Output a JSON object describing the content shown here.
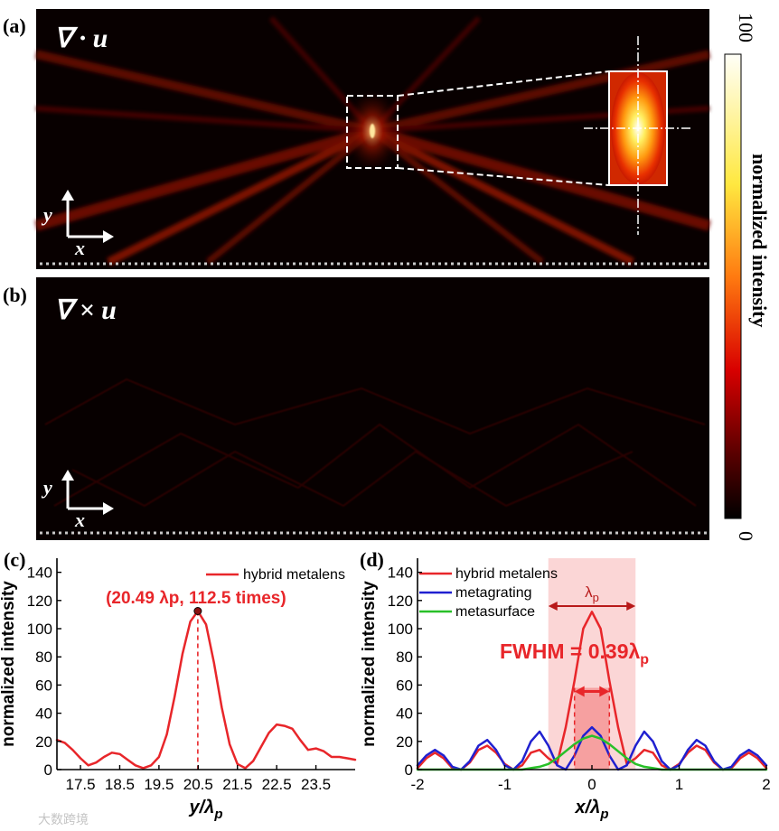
{
  "figure": {
    "panel_a_label": "(a)",
    "panel_b_label": "(b)",
    "panel_c_label": "(c)",
    "panel_d_label": "(d)",
    "panel_a_operator": "∇ · u",
    "panel_b_operator": "∇ × u",
    "axis_y_arrow": "y",
    "axis_x_arrow": "x",
    "colorbar_label": "normalized intensity",
    "colorbar_max": "100",
    "colorbar_min": "0",
    "watermark": "大数跨境"
  },
  "chart_data": [
    {
      "type": "line",
      "panel": "c",
      "xlabel": "y/λp",
      "ylabel": "normalized intensity",
      "xlim": [
        16.9,
        24.5
      ],
      "ylim": [
        0,
        150
      ],
      "xticks": [
        "17.5",
        "18.5",
        "19.5",
        "20.5",
        "21.5",
        "22.5",
        "23.5"
      ],
      "yticks": [
        "0",
        "20",
        "40",
        "60",
        "80",
        "100",
        "120",
        "140"
      ],
      "legend": [
        "hybrid metalens"
      ],
      "legend_position": "top-right",
      "peak": {
        "x": 20.49,
        "y": 112.5
      },
      "annotation": "(20.49 λp, 112.5 times)",
      "series": [
        {
          "name": "hybrid metalens",
          "color": "#e8262a",
          "x": [
            16.9,
            17.1,
            17.3,
            17.5,
            17.7,
            17.9,
            18.1,
            18.3,
            18.5,
            18.7,
            18.9,
            19.1,
            19.3,
            19.5,
            19.7,
            19.9,
            20.1,
            20.3,
            20.49,
            20.7,
            20.9,
            21.1,
            21.3,
            21.5,
            21.7,
            21.9,
            22.1,
            22.3,
            22.5,
            22.7,
            22.9,
            23.1,
            23.3,
            23.5,
            23.7,
            23.9,
            24.1,
            24.3,
            24.5
          ],
          "y": [
            21,
            19,
            14,
            8,
            3,
            5,
            9,
            12,
            11,
            7,
            3,
            1,
            3,
            9,
            25,
            52,
            82,
            105,
            112.5,
            103,
            76,
            44,
            18,
            4,
            1,
            6,
            16,
            26,
            32,
            31,
            29,
            21,
            14,
            15,
            13,
            9,
            9,
            8,
            7
          ]
        }
      ]
    },
    {
      "type": "line",
      "panel": "d",
      "xlabel": "x/λp",
      "ylabel": "normalized intensity",
      "xlim": [
        -2,
        2
      ],
      "ylim": [
        0,
        150
      ],
      "xticks": [
        "-2",
        "-1",
        "0",
        "1",
        "2"
      ],
      "yticks": [
        "0",
        "20",
        "40",
        "60",
        "80",
        "100",
        "120",
        "140"
      ],
      "legend": [
        "hybrid metalens",
        "metagrating",
        "metasurface"
      ],
      "legend_position": "top-left",
      "annotation_wavelength": "λp",
      "wavelength_band": [
        -0.5,
        0.5
      ],
      "fwhm_band": [
        -0.2,
        0.2
      ],
      "fwhm_label": "FWHM = 0.39λp",
      "series": [
        {
          "name": "hybrid metalens",
          "color": "#e8262a",
          "x": [
            -2.0,
            -1.9,
            -1.8,
            -1.7,
            -1.6,
            -1.5,
            -1.4,
            -1.3,
            -1.2,
            -1.1,
            -1.0,
            -0.9,
            -0.8,
            -0.7,
            -0.6,
            -0.5,
            -0.4,
            -0.3,
            -0.2,
            -0.1,
            0.0,
            0.1,
            0.2,
            0.3,
            0.4,
            0.5,
            0.6,
            0.7,
            0.8,
            0.9,
            1.0,
            1.1,
            1.2,
            1.3,
            1.4,
            1.5,
            1.6,
            1.7,
            1.8,
            1.9,
            2.0
          ],
          "y": [
            1,
            8,
            12,
            8,
            1,
            0,
            5,
            14,
            17,
            12,
            4,
            0,
            3,
            12,
            14,
            8,
            4,
            30,
            63,
            100,
            112,
            100,
            63,
            30,
            4,
            8,
            14,
            12,
            3,
            0,
            4,
            12,
            17,
            14,
            5,
            0,
            1,
            8,
            12,
            8,
            1
          ]
        },
        {
          "name": "metagrating",
          "color": "#2020d0",
          "x": [
            -2.0,
            -1.9,
            -1.8,
            -1.7,
            -1.6,
            -1.5,
            -1.4,
            -1.3,
            -1.2,
            -1.1,
            -1.0,
            -0.9,
            -0.8,
            -0.7,
            -0.6,
            -0.5,
            -0.4,
            -0.3,
            -0.2,
            -0.1,
            0.0,
            0.1,
            0.2,
            0.3,
            0.4,
            0.5,
            0.6,
            0.7,
            0.8,
            0.9,
            1.0,
            1.1,
            1.2,
            1.3,
            1.4,
            1.5,
            1.6,
            1.7,
            1.8,
            1.9,
            2.0
          ],
          "y": [
            3,
            10,
            14,
            10,
            2,
            0,
            6,
            17,
            21,
            14,
            3,
            0,
            6,
            20,
            27,
            17,
            3,
            0,
            10,
            24,
            30,
            24,
            10,
            0,
            3,
            17,
            27,
            20,
            6,
            0,
            3,
            14,
            21,
            17,
            6,
            0,
            2,
            10,
            14,
            10,
            3
          ]
        },
        {
          "name": "metasurface",
          "color": "#28c028",
          "x": [
            -2.0,
            -1.5,
            -1.0,
            -0.8,
            -0.7,
            -0.6,
            -0.5,
            -0.4,
            -0.3,
            -0.2,
            -0.1,
            0.0,
            0.1,
            0.2,
            0.3,
            0.4,
            0.5,
            0.6,
            0.7,
            0.8,
            1.0,
            1.5,
            2.0
          ],
          "y": [
            0,
            0,
            0,
            0,
            1,
            2,
            4,
            8,
            13,
            18,
            22,
            24,
            22,
            18,
            13,
            8,
            4,
            2,
            1,
            0,
            0,
            0,
            0
          ]
        }
      ]
    }
  ]
}
